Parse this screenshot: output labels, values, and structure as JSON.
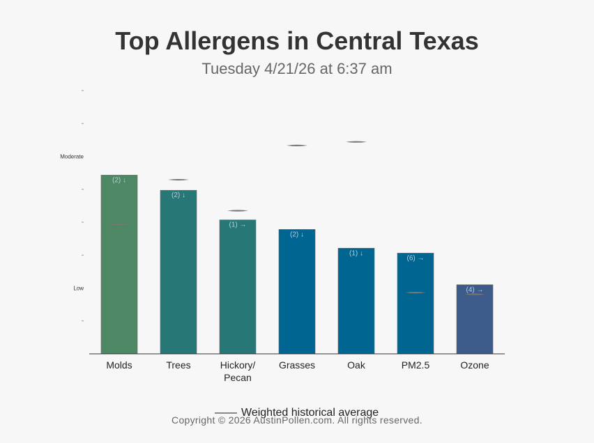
{
  "header": {
    "title": "Top Allergens in Central Texas",
    "subtitle": "Tuesday 4/21/26 at 6:37 am"
  },
  "legend": {
    "label": "Weighted historical average"
  },
  "footer": {
    "copyright": "Copyright © 2026 AustinPollen.com.  All rights reserved."
  },
  "chart_data": {
    "type": "bar",
    "title": "Top Allergens in Central Texas",
    "subtitle": "Tuesday 4/21/26 at 6:37 am",
    "y_axis_labels": [
      {
        "value": 2,
        "label": "Low"
      },
      {
        "value": 6,
        "label": "Moderate"
      }
    ],
    "y_minor_ticks": [
      1,
      3,
      4,
      5,
      7,
      8
    ],
    "ylim": [
      0,
      8
    ],
    "grid": false,
    "legend_position": "bottom",
    "categories": [
      {
        "label": "Molds",
        "value": 5.43,
        "historical": 3.93,
        "annotation": "(2) ↓",
        "color": "#4e8763"
      },
      {
        "label": "Trees",
        "value": 4.97,
        "historical": 5.29,
        "annotation": "(2) ↓",
        "color": "#287777"
      },
      {
        "label": "Hickory/ Pecan",
        "value": 4.07,
        "historical": 4.35,
        "annotation": "(1) →",
        "color": "#287777"
      },
      {
        "label": "Grasses",
        "value": 3.78,
        "historical": 6.33,
        "annotation": "(2) ↓",
        "color": "#006591"
      },
      {
        "label": "Oak",
        "value": 3.21,
        "historical": 6.44,
        "annotation": "(1) ↓",
        "color": "#006591"
      },
      {
        "label": "PM2.5",
        "value": 3.06,
        "historical": 1.86,
        "annotation": "(6) →",
        "color": "#006591"
      },
      {
        "label": "Ozone",
        "value": 2.1,
        "historical": 1.81,
        "annotation": "(4) →",
        "color": "#3c5b8a"
      }
    ],
    "series": [
      {
        "name": "",
        "key": "value"
      },
      {
        "name": "Weighted historical average",
        "key": "historical"
      }
    ],
    "colors": {
      "axis": "#333333",
      "historical_marker": "#777777",
      "annotation": "#b8cfe0",
      "bar_outline": "#666666"
    }
  }
}
